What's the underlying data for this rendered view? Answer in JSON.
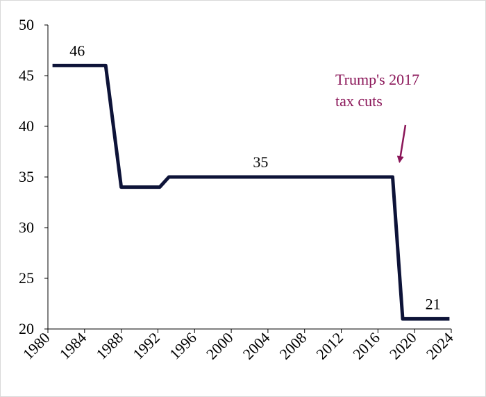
{
  "chart_data": {
    "type": "line",
    "title": "",
    "xlabel": "",
    "ylabel": "",
    "ylim": [
      20,
      50
    ],
    "yticks": [
      20,
      25,
      30,
      35,
      40,
      45,
      50
    ],
    "xlim": [
      1980,
      2024
    ],
    "xticks": [
      "1980",
      "1984",
      "1988",
      "1992",
      "1996",
      "2000",
      "2004",
      "2008",
      "2012",
      "2016",
      "2020",
      "2024"
    ],
    "grid": false,
    "x": [
      1980.5,
      1986.3,
      1988,
      1992.2,
      1993.2,
      2017.6,
      2018.7,
      2023.8
    ],
    "values": [
      46,
      46,
      34,
      34,
      35,
      35,
      21,
      21
    ],
    "line_color": "#0d1338",
    "data_labels": [
      {
        "x": 1983.2,
        "y": 46,
        "text": "46"
      },
      {
        "x": 2003.2,
        "y": 35,
        "text": "35"
      },
      {
        "x": 2022,
        "y": 21,
        "text": "21"
      }
    ],
    "annotation": {
      "lines": [
        "Trump's 2017",
        "tax cuts"
      ],
      "color": "#8a1558",
      "arrow_target": {
        "x": 2017.6,
        "y": 35
      }
    }
  }
}
